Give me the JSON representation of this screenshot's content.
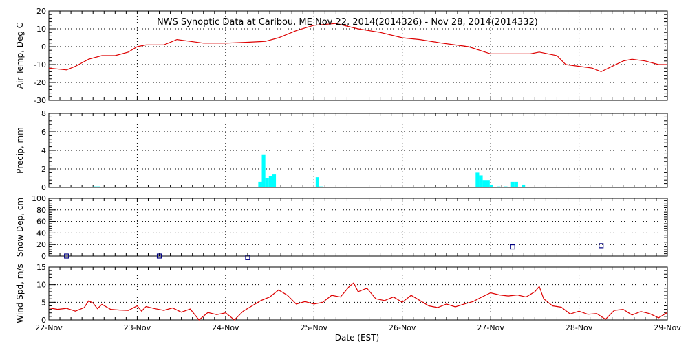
{
  "chart_data": {
    "type": "line",
    "title": "NWS Synoptic Data at Caribou, ME   Nov 22, 2014(2014326) - Nov 28, 2014(2014332)",
    "xlabel": "Date (EST)",
    "x_range_days": [
      0,
      7
    ],
    "x_ticks": [
      {
        "d": 0,
        "label": "22-Nov"
      },
      {
        "d": 1,
        "label": "23-Nov"
      },
      {
        "d": 2,
        "label": "24-Nov"
      },
      {
        "d": 3,
        "label": "25-Nov"
      },
      {
        "d": 4,
        "label": "26-Nov"
      },
      {
        "d": 5,
        "label": "27-Nov"
      },
      {
        "d": 6,
        "label": "28-Nov"
      },
      {
        "d": 7,
        "label": "29-Nov"
      }
    ],
    "grid": true,
    "colors": {
      "line": "#dd0000",
      "bar": "#00ffff",
      "marker": "#000080",
      "frame": "#000000"
    },
    "panels": [
      {
        "id": "airtemp",
        "type": "line",
        "ylabel": "Air Temp, Deg C",
        "ylim": [
          -30,
          20
        ],
        "yticks": [
          -30,
          -20,
          -10,
          0,
          10,
          20
        ],
        "points": [
          [
            0,
            -12
          ],
          [
            0.2,
            -13
          ],
          [
            0.3,
            -11
          ],
          [
            0.45,
            -7
          ],
          [
            0.6,
            -5
          ],
          [
            0.75,
            -5
          ],
          [
            0.9,
            -3
          ],
          [
            1.0,
            0
          ],
          [
            1.1,
            1
          ],
          [
            1.3,
            1
          ],
          [
            1.45,
            4
          ],
          [
            1.6,
            3
          ],
          [
            1.75,
            2
          ],
          [
            2.0,
            2
          ],
          [
            2.25,
            2.5
          ],
          [
            2.45,
            3
          ],
          [
            2.6,
            5
          ],
          [
            2.8,
            9
          ],
          [
            3.0,
            12
          ],
          [
            3.25,
            13
          ],
          [
            3.5,
            10
          ],
          [
            3.75,
            8
          ],
          [
            4.0,
            5
          ],
          [
            4.2,
            4
          ],
          [
            4.45,
            2
          ],
          [
            4.6,
            1
          ],
          [
            4.75,
            0
          ],
          [
            5.0,
            -4
          ],
          [
            5.25,
            -4
          ],
          [
            5.45,
            -4
          ],
          [
            5.55,
            -3
          ],
          [
            5.75,
            -5
          ],
          [
            5.85,
            -10
          ],
          [
            6.0,
            -11
          ],
          [
            6.15,
            -12
          ],
          [
            6.25,
            -14
          ],
          [
            6.5,
            -8
          ],
          [
            6.6,
            -7
          ],
          [
            6.75,
            -8
          ],
          [
            6.9,
            -10
          ],
          [
            7.0,
            -10
          ]
        ]
      },
      {
        "id": "precip",
        "type": "bar",
        "ylabel": "Precip, mm",
        "ylim": [
          0,
          8
        ],
        "yticks": [
          0,
          2,
          4,
          6,
          8
        ],
        "bar_width_days": 0.04,
        "bars": [
          [
            0.5,
            0.1
          ],
          [
            0.54,
            0.1
          ],
          [
            2.37,
            0.6
          ],
          [
            2.41,
            3.5
          ],
          [
            2.45,
            1
          ],
          [
            2.49,
            1.2
          ],
          [
            2.53,
            1.4
          ],
          [
            3.02,
            1.1
          ],
          [
            3.06,
            0.1
          ],
          [
            4.83,
            1.6
          ],
          [
            4.87,
            1.3
          ],
          [
            4.91,
            0.8
          ],
          [
            4.95,
            0.8
          ],
          [
            4.99,
            0.3
          ],
          [
            5.07,
            0.1
          ],
          [
            5.15,
            0.1
          ],
          [
            5.23,
            0.6
          ],
          [
            5.27,
            0.6
          ],
          [
            5.35,
            0.3
          ]
        ]
      },
      {
        "id": "snowdep",
        "type": "scatter",
        "ylabel": "Snow Dep, cm",
        "ylim": [
          0,
          100
        ],
        "yticks": [
          0,
          20,
          40,
          60,
          80,
          100
        ],
        "points": [
          [
            0.2,
            0
          ],
          [
            1.25,
            0
          ],
          [
            2.25,
            -2
          ],
          [
            5.25,
            16
          ],
          [
            6.25,
            18
          ]
        ]
      },
      {
        "id": "windspd",
        "type": "line",
        "ylabel": "Wind Spd, m/s",
        "ylim": [
          0,
          15
        ],
        "yticks": [
          0,
          5,
          10,
          15
        ],
        "points": [
          [
            0,
            3.4
          ],
          [
            0.1,
            3
          ],
          [
            0.2,
            3.3
          ],
          [
            0.3,
            2.5
          ],
          [
            0.4,
            3.5
          ],
          [
            0.45,
            5.4
          ],
          [
            0.5,
            4.8
          ],
          [
            0.55,
            3.2
          ],
          [
            0.6,
            4.4
          ],
          [
            0.7,
            3
          ],
          [
            0.8,
            2.8
          ],
          [
            0.9,
            2.7
          ],
          [
            1.0,
            4
          ],
          [
            1.05,
            2.5
          ],
          [
            1.1,
            3.8
          ],
          [
            1.2,
            3.2
          ],
          [
            1.3,
            2.7
          ],
          [
            1.4,
            3.4
          ],
          [
            1.5,
            2.2
          ],
          [
            1.6,
            3.1
          ],
          [
            1.7,
            0
          ],
          [
            1.8,
            2.1
          ],
          [
            1.9,
            1.5
          ],
          [
            2.0,
            2
          ],
          [
            2.1,
            0
          ],
          [
            2.2,
            2.5
          ],
          [
            2.3,
            4
          ],
          [
            2.4,
            5.5
          ],
          [
            2.5,
            6.5
          ],
          [
            2.6,
            8.5
          ],
          [
            2.7,
            7
          ],
          [
            2.8,
            4.5
          ],
          [
            2.9,
            5.2
          ],
          [
            3.0,
            4.5
          ],
          [
            3.1,
            5
          ],
          [
            3.2,
            7
          ],
          [
            3.3,
            6.5
          ],
          [
            3.4,
            9.5
          ],
          [
            3.45,
            10.5
          ],
          [
            3.5,
            8
          ],
          [
            3.6,
            9
          ],
          [
            3.7,
            6
          ],
          [
            3.8,
            5.5
          ],
          [
            3.9,
            6.5
          ],
          [
            4.0,
            5
          ],
          [
            4.1,
            7
          ],
          [
            4.2,
            5.5
          ],
          [
            4.3,
            4
          ],
          [
            4.4,
            3.5
          ],
          [
            4.5,
            4.5
          ],
          [
            4.6,
            3.7
          ],
          [
            4.7,
            4.5
          ],
          [
            4.8,
            5.2
          ],
          [
            4.9,
            6.5
          ],
          [
            5.0,
            7.7
          ],
          [
            5.1,
            7.1
          ],
          [
            5.2,
            6.8
          ],
          [
            5.3,
            7.1
          ],
          [
            5.4,
            6.5
          ],
          [
            5.5,
            8
          ],
          [
            5.55,
            9.5
          ],
          [
            5.6,
            6
          ],
          [
            5.7,
            4
          ],
          [
            5.8,
            3.6
          ],
          [
            5.9,
            1.7
          ],
          [
            6.0,
            2.5
          ],
          [
            6.1,
            1.6
          ],
          [
            6.2,
            1.8
          ],
          [
            6.3,
            0.2
          ],
          [
            6.4,
            2.7
          ],
          [
            6.5,
            3
          ],
          [
            6.6,
            1.4
          ],
          [
            6.7,
            2.4
          ],
          [
            6.8,
            1.8
          ],
          [
            6.9,
            0.6
          ],
          [
            7.0,
            2.1
          ]
        ]
      }
    ]
  }
}
